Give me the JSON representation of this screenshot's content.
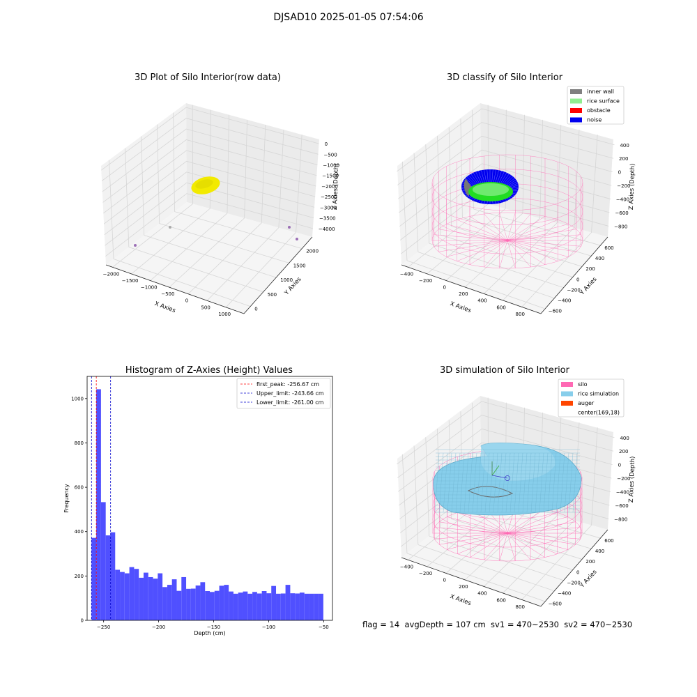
{
  "suptitle": "DJSAD10 2025-01-05 07:54:06",
  "footer": "flag = 14  avgDepth = 107 cm  sv1 = 470~2530  sv2 = 470~2530",
  "colors": {
    "pane": "#f2f2f2",
    "grid": "#d6d6d6",
    "yellow": "#f2ea00",
    "purple": "#9b6fb5",
    "wall": "#808080",
    "rice": "#90ee90",
    "green": "#22dd22",
    "obstacle": "#ff0000",
    "noise": "#0000ee",
    "silo": "#ff69b4",
    "rice_sim": "#87ceeb",
    "auger": "#ff4500",
    "hist": "#5050ff"
  },
  "plot1": {
    "title": "3D Plot of Silo Interior(row data)",
    "xlabel": "X Axies",
    "ylabel": "Y Axies",
    "zlabel": "Z Axies (Depth)",
    "xticks": [
      "−2000",
      "−1500",
      "−1000",
      "−500",
      "0",
      "500",
      "1000"
    ],
    "yticks": [
      "0",
      "500",
      "1000",
      "1500",
      "2000"
    ],
    "zticks": [
      "0",
      "−500",
      "−1000",
      "−1500",
      "−2000",
      "−2500",
      "−3000",
      "−3500",
      "−4000"
    ]
  },
  "plot2": {
    "title": "3D classify of Silo Interior",
    "xlabel": "X Axies",
    "ylabel": "Y Axies",
    "zlabel": "Z Axies (Depth)",
    "xticks": [
      "−400",
      "−200",
      "0",
      "200",
      "400",
      "600",
      "800"
    ],
    "yticks": [
      "−600",
      "−400",
      "−200",
      "0",
      "200",
      "400",
      "600"
    ],
    "zticks": [
      "400",
      "200",
      "0",
      "−200",
      "−400",
      "−600",
      "−800"
    ],
    "legend": [
      {
        "label": "inner wall",
        "color": "#808080"
      },
      {
        "label": "rice surface",
        "color": "#90ee90"
      },
      {
        "label": "obstacle",
        "color": "#ff0000"
      },
      {
        "label": "noise",
        "color": "#0000ee"
      }
    ]
  },
  "plot4": {
    "title": "3D simulation of Silo Interior",
    "xlabel": "X Axies",
    "ylabel": "Y Axies",
    "zlabel": "Z Axies (Depth)",
    "xticks": [
      "−400",
      "−200",
      "0",
      "200",
      "400",
      "600",
      "800"
    ],
    "yticks": [
      "−600",
      "−400",
      "−200",
      "0",
      "200",
      "400",
      "600"
    ],
    "zticks": [
      "400",
      "200",
      "0",
      "−200",
      "−400",
      "−600",
      "−800"
    ],
    "legend": [
      {
        "label": "silo",
        "color": "#ff69b4"
      },
      {
        "label": "rice simulation",
        "color": "#87ceeb"
      },
      {
        "label": "auger",
        "color": "#ff4500"
      },
      {
        "label": "center(169,18)",
        "color": ""
      }
    ]
  },
  "chart_data": {
    "type": "bar",
    "title": "Histogram of Z-Axies (Height) Values",
    "xlabel": "Depth (cm)",
    "ylabel": "Frequency",
    "xlim": [
      -265,
      -42
    ],
    "ylim": [
      0,
      1100
    ],
    "xticks": [
      -250,
      -200,
      -150,
      -100,
      -50
    ],
    "yticks": [
      0,
      200,
      400,
      600,
      800,
      1000
    ],
    "x_start": -261,
    "bin_width": 4.3,
    "values": [
      372,
      1042,
      533,
      383,
      397,
      228,
      218,
      212,
      240,
      232,
      192,
      215,
      195,
      188,
      212,
      150,
      160,
      185,
      133,
      195,
      142,
      143,
      157,
      172,
      132,
      128,
      133,
      156,
      160,
      130,
      120,
      125,
      130,
      120,
      128,
      121,
      132,
      122,
      155,
      120,
      121,
      160,
      122,
      121,
      125,
      120,
      120,
      120,
      120
    ],
    "vlines": [
      {
        "label": "first_peak: -256.67 cm",
        "x": -256.67,
        "color": "#ff0000"
      },
      {
        "label": "Upper_limit: -243.66 cm",
        "x": -243.66,
        "color": "#0000cc"
      },
      {
        "label": "Lower_limit: -261.00 cm",
        "x": -261.0,
        "color": "#0000cc"
      }
    ],
    "legend_position": "upper right"
  }
}
